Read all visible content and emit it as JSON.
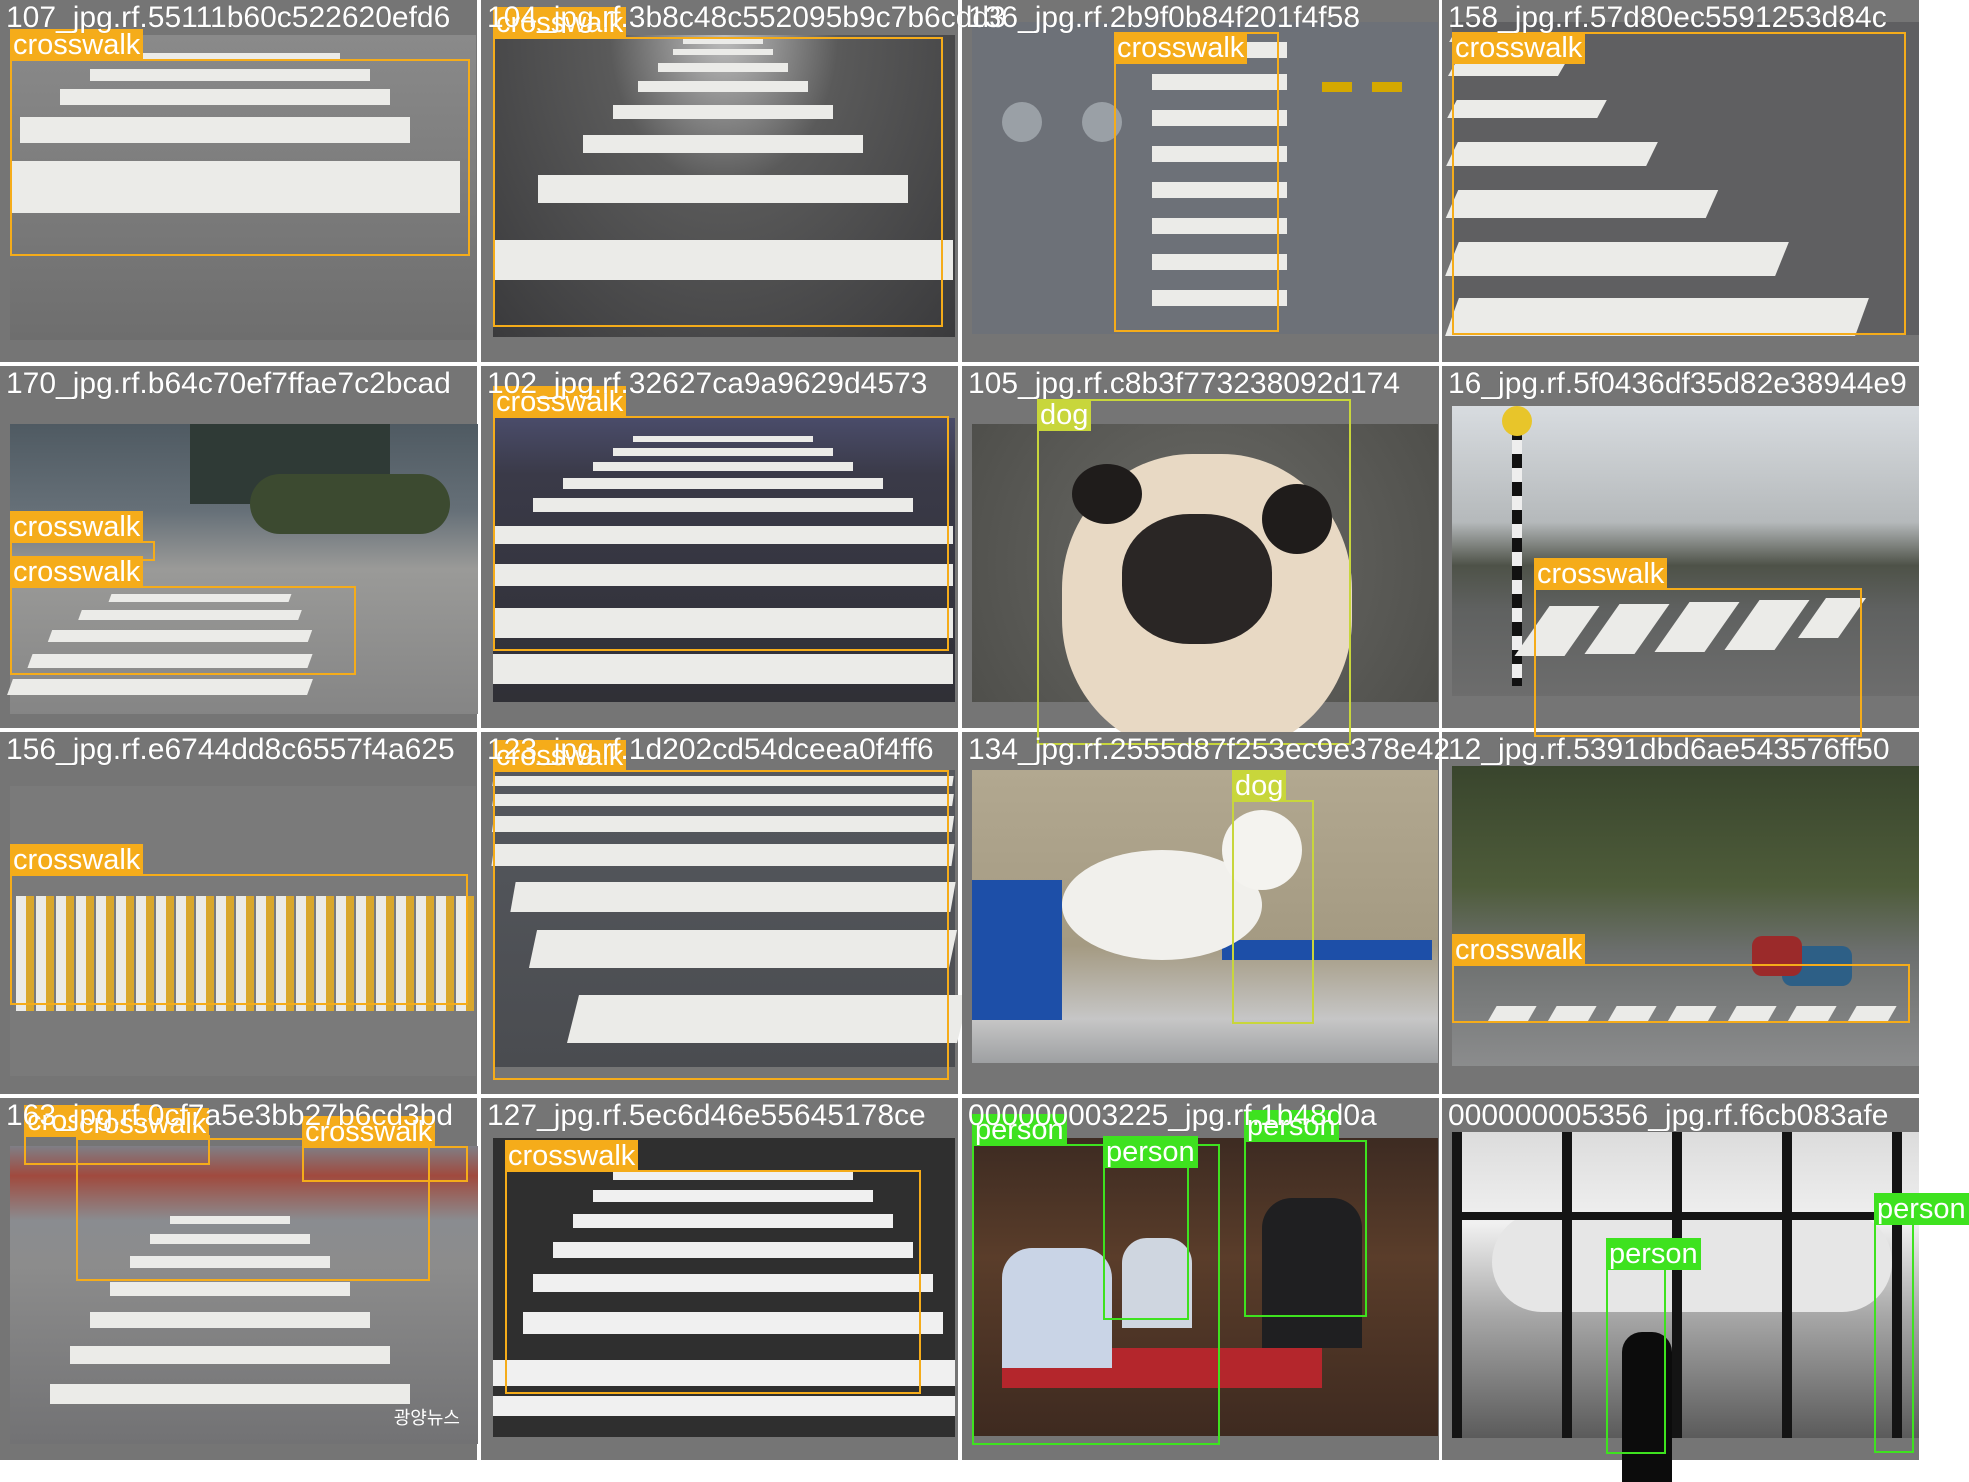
{
  "classes": {
    "crosswalk": {
      "label": "crosswalk",
      "color": "#f5ac1a"
    },
    "dog": {
      "label": "dog",
      "color": "#c8d63b"
    },
    "person": {
      "label": "person",
      "color": "#3ee21f"
    }
  },
  "cells": [
    {
      "name": "107_jpg.rf.55111b60c522620efd6",
      "scene": "crosswalk-flat",
      "boxes": [
        {
          "cls": "crosswalk"
        }
      ]
    },
    {
      "name": "104_jpg.rf.3b8c48c552095b9c7b6cdd3",
      "scene": "crosswalk-perspective",
      "boxes": [
        {
          "cls": "crosswalk"
        }
      ]
    },
    {
      "name": "136_jpg.rf.2b9f0b84f201f4f58",
      "scene": "crosswalk-vertical",
      "boxes": [
        {
          "cls": "crosswalk"
        }
      ]
    },
    {
      "name": "158_jpg.rf.57d80ec5591253d84c",
      "scene": "crosswalk-diagonal",
      "boxes": [
        {
          "cls": "crosswalk"
        }
      ]
    },
    {
      "name": "170_jpg.rf.b64c70ef7ffae7c2bcad",
      "scene": "street-corner",
      "boxes": [
        {
          "cls": "crosswalk"
        },
        {
          "cls": "crosswalk"
        }
      ]
    },
    {
      "name": "102_jpg.rf.32627ca9a9629d4573",
      "scene": "crosswalk-night",
      "boxes": [
        {
          "cls": "crosswalk"
        }
      ]
    },
    {
      "name": "105_jpg.rf.c8b3f773238092d174",
      "scene": "pug",
      "boxes": [
        {
          "cls": "dog"
        }
      ]
    },
    {
      "name": "16_jpg.rf.5f0436df35d82e38944e9",
      "scene": "park-road",
      "boxes": [
        {
          "cls": "crosswalk"
        }
      ]
    },
    {
      "name": "156_jpg.rf.e6744dd8c6557f4a625",
      "scene": "crosswalk-yellow",
      "boxes": [
        {
          "cls": "crosswalk"
        }
      ]
    },
    {
      "name": "123_jpg.rf.1d202cd54dceea0f4ff6",
      "scene": "crosswalk-closeup",
      "boxes": [
        {
          "cls": "crosswalk"
        }
      ]
    },
    {
      "name": "134_jpg.rf.2555d87f253ec9e378e42",
      "scene": "white-dog",
      "boxes": [
        {
          "cls": "dog"
        }
      ]
    },
    {
      "name": "12_jpg.rf.5391dbd6ae543576ff50",
      "scene": "tree-street",
      "boxes": [
        {
          "cls": "crosswalk"
        }
      ]
    },
    {
      "name": "163_jpg.rf.0cf7a5e3bb27b6cd3bd",
      "scene": "korean-street",
      "boxes": [
        {
          "cls": "crosswalk"
        },
        {
          "cls": "crosswalk"
        },
        {
          "cls": "crosswalk"
        }
      ],
      "watermark": "광양뉴스"
    },
    {
      "name": "127_jpg.rf.5ec6d46e55645178ce",
      "scene": "crosswalk-bw",
      "boxes": [
        {
          "cls": "crosswalk"
        }
      ]
    },
    {
      "name": "000000003225_jpg.rf.1b48d0a",
      "scene": "band",
      "boxes": [
        {
          "cls": "person"
        },
        {
          "cls": "person"
        },
        {
          "cls": "person"
        }
      ]
    },
    {
      "name": "000000005356_jpg.rf.f6cb083afe",
      "scene": "airport-window",
      "boxes": [
        {
          "cls": "person"
        },
        {
          "cls": "person"
        }
      ]
    }
  ]
}
